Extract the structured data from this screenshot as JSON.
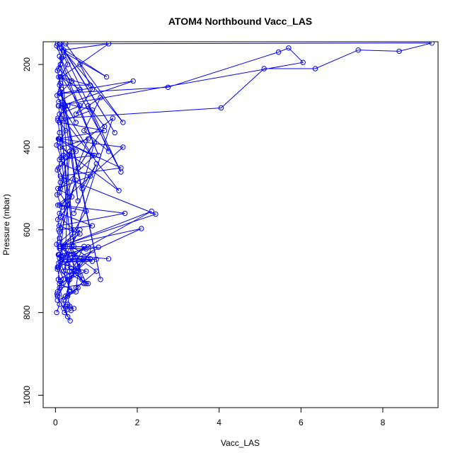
{
  "chart_data": {
    "type": "scatter",
    "title": "ATOM4 Northbound Vacc_LAS",
    "xlabel": "Vacc_LAS",
    "ylabel": "Pressure (mbar)",
    "xlim": [
      -0.3,
      9.35
    ],
    "ylim": [
      1030,
      145
    ],
    "y_reversed": true,
    "x_ticks": [
      0,
      2,
      4,
      6,
      8
    ],
    "y_ticks": [
      200,
      400,
      600,
      800,
      1000
    ],
    "grid": false,
    "legend": "none",
    "color": "#0000ff",
    "marker": "open-circle",
    "connected": true,
    "series": [
      {
        "x": [
          0.05,
          0.3,
          0.12,
          0.6,
          0.08,
          0.9,
          0.1,
          1.2,
          0.07,
          0.5,
          0.15,
          0.85,
          0.06,
          0.4,
          0.1,
          1.7,
          0.09,
          0.6,
          0.12,
          2.35,
          0.08,
          0.75,
          0.1,
          0.5,
          0.05
        ],
        "y": [
          150,
          200,
          230,
          260,
          290,
          310,
          340,
          360,
          380,
          410,
          440,
          470,
          500,
          520,
          540,
          560,
          590,
          610,
          640,
          555,
          680,
          700,
          730,
          750,
          770
        ]
      },
      {
        "x": [
          0.1,
          9.2,
          8.4,
          7.4,
          6.35,
          5.1,
          4.05,
          0.15,
          0.2,
          0.3,
          0.25,
          0.35,
          0.3,
          0.2,
          0.36
        ],
        "y": [
          150,
          148,
          168,
          165,
          210,
          210,
          305,
          330,
          420,
          520,
          640,
          700,
          760,
          790,
          820
        ]
      },
      {
        "x": [
          0.07,
          6.05,
          5.7,
          5.45,
          2.75,
          0.12,
          0.5,
          0.1,
          1.9,
          0.15,
          0.9,
          0.08,
          1.6,
          0.12,
          2.45,
          0.1,
          0.6,
          0.08,
          0.3,
          0.06
        ],
        "y": [
          300,
          195,
          160,
          170,
          255,
          270,
          340,
          270,
          240,
          300,
          420,
          380,
          450,
          470,
          562,
          640,
          600,
          690,
          720,
          760
        ]
      },
      {
        "x": [
          0.05,
          2.1,
          0.1,
          1.05,
          0.08,
          1.3,
          0.1,
          0.75,
          0.06,
          1.65,
          0.1,
          0.45,
          0.07,
          0.35,
          0.12,
          0.95,
          0.1,
          1.4,
          0.2,
          0.8,
          0.1,
          0.3,
          0.05
        ],
        "y": [
          690,
          597,
          640,
          642,
          660,
          670,
          660,
          555,
          540,
          400,
          380,
          700,
          720,
          410,
          500,
          420,
          430,
          330,
          700,
          730,
          740,
          810,
          760
        ]
      },
      {
        "x": [
          0.25,
          1.65,
          0.15,
          1.25,
          0.2,
          1.6,
          0.1,
          1.05,
          0.12,
          0.55,
          0.08,
          0.85,
          0.1,
          1.1,
          0.15,
          0.45,
          0.08
        ],
        "y": [
          150,
          340,
          160,
          230,
          170,
          460,
          180,
          420,
          200,
          530,
          230,
          250,
          250,
          720,
          260,
          640,
          300
        ]
      },
      {
        "x": [
          0.12,
          1.45,
          0.2,
          1.3,
          0.15,
          0.6,
          0.1,
          1.55,
          0.12,
          0.8,
          0.1,
          0.9,
          0.08,
          0.5,
          0.1,
          0.35,
          0.07
        ],
        "y": [
          150,
          365,
          165,
          150,
          230,
          300,
          320,
          505,
          400,
          380,
          560,
          590,
          600,
          480,
          620,
          745,
          660
        ]
      },
      {
        "x": [
          0.09,
          0.2,
          0.08,
          0.4,
          0.1,
          0.3,
          0.06,
          0.25,
          0.1,
          0.35,
          0.08,
          0.2,
          0.1,
          0.3,
          0.12,
          0.45,
          0.1,
          0.28,
          0.07,
          0.2,
          0.05
        ],
        "y": [
          160,
          180,
          210,
          240,
          270,
          300,
          330,
          360,
          390,
          420,
          450,
          480,
          510,
          540,
          570,
          600,
          630,
          660,
          690,
          720,
          750
        ]
      },
      {
        "x": [
          0.03,
          0.15,
          0.05,
          0.12,
          0.04,
          0.18,
          0.06,
          0.1,
          0.03,
          0.14,
          0.05,
          0.12,
          0.04,
          0.16,
          0.06,
          0.1,
          0.03,
          0.14,
          0.05,
          0.12,
          0.04,
          0.1,
          0.03
        ],
        "y": [
          155,
          185,
          215,
          245,
          275,
          305,
          335,
          365,
          395,
          425,
          455,
          485,
          515,
          545,
          575,
          605,
          635,
          665,
          695,
          725,
          755,
          780,
          800
        ]
      },
      {
        "x": [
          0.2,
          0.55,
          0.3,
          0.7,
          0.4,
          0.9,
          0.35,
          0.6,
          0.5,
          1.0,
          0.45,
          0.75,
          0.3,
          0.65,
          0.4,
          0.85,
          0.5,
          0.7
        ],
        "y": [
          640,
          700,
          680,
          640,
          700,
          650,
          720,
          680,
          740,
          700,
          660,
          730,
          690,
          720,
          640,
          670,
          700,
          730
        ]
      },
      {
        "x": [
          0.15,
          0.4,
          0.25,
          0.55,
          0.2,
          0.35,
          0.3,
          0.45,
          0.25,
          0.38,
          0.22,
          0.35
        ],
        "y": [
          730,
          710,
          760,
          740,
          770,
          750,
          780,
          790,
          785,
          795,
          800,
          785
        ]
      },
      {
        "x": [
          0.6,
          0.9,
          0.5,
          1.1,
          0.7,
          1.3,
          0.8,
          1.2,
          0.55,
          0.95,
          0.65,
          1.0,
          0.45
        ],
        "y": [
          200,
          260,
          320,
          280,
          360,
          410,
          300,
          350,
          450,
          390,
          500,
          440,
          560
        ]
      },
      {
        "x": [
          0.1,
          0.8,
          0.1,
          0.7,
          0.15,
          1.0,
          0.12,
          0.9,
          0.1,
          0.75
        ],
        "y": [
          640,
          641,
          668,
          670,
          672,
          671,
          678,
          676,
          645,
          646
        ]
      }
    ]
  }
}
